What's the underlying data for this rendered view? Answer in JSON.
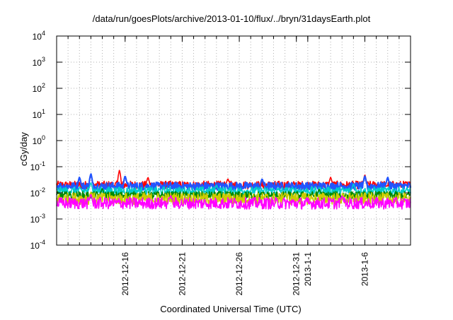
{
  "chart_data": {
    "type": "line",
    "title": "/data/run/goesPlots/archive/2013-01-10/flux/../bryn/31daysEarth.plot",
    "xlabel": "Coordinated Universal Time (UTC)",
    "ylabel": "cGy/day",
    "yscale": "log",
    "ylim": [
      0.0001,
      10000
    ],
    "xlim": [
      "2012-12-10",
      "2013-01-10"
    ],
    "grid": true,
    "legend": "none",
    "y_ticks": [
      {
        "base": "10",
        "exp": "-4",
        "value": 0.0001
      },
      {
        "base": "10",
        "exp": "-3",
        "value": 0.001
      },
      {
        "base": "10",
        "exp": "-2",
        "value": 0.01
      },
      {
        "base": "10",
        "exp": "-1",
        "value": 0.1
      },
      {
        "base": "10",
        "exp": "0",
        "value": 1
      },
      {
        "base": "10",
        "exp": "1",
        "value": 10
      },
      {
        "base": "10",
        "exp": "2",
        "value": 100
      },
      {
        "base": "10",
        "exp": "3",
        "value": 1000
      },
      {
        "base": "10",
        "exp": "4",
        "value": 10000
      }
    ],
    "x_ticks": [
      {
        "label": "2012-12-16",
        "date": "2012-12-16"
      },
      {
        "label": "2012-12-21",
        "date": "2012-12-21"
      },
      {
        "label": "2012-12-26",
        "date": "2012-12-26"
      },
      {
        "label": "2012-12-31",
        "date": "2012-12-31"
      },
      {
        "label": "2013-1-1",
        "date": "2013-01-01"
      },
      {
        "label": "2013-1-6",
        "date": "2013-01-06"
      }
    ],
    "series": [
      {
        "color": "#ff0000",
        "baseline": 0.02,
        "peaks": [
          [
            "2012-12-13",
            0.05
          ],
          [
            "2012-12-15.5",
            0.075
          ],
          [
            "2012-12-18",
            0.04
          ],
          [
            "2012-12-25",
            0.035
          ],
          [
            "2013-01-03",
            0.04
          ],
          [
            "2013-01-06",
            0.05
          ]
        ]
      },
      {
        "color": "#2255ff",
        "baseline": 0.018,
        "peaks": [
          [
            "2012-12-12",
            0.04
          ],
          [
            "2012-12-13",
            0.055
          ],
          [
            "2012-12-16",
            0.045
          ],
          [
            "2012-12-28",
            0.035
          ],
          [
            "2013-01-06",
            0.045
          ],
          [
            "2013-01-08",
            0.04
          ]
        ]
      },
      {
        "color": "#00cccc",
        "baseline": 0.012,
        "peaks": [
          [
            "2012-12-13",
            0.025
          ],
          [
            "2012-12-24",
            0.02
          ],
          [
            "2013-01-05",
            0.022
          ]
        ]
      },
      {
        "color": "#008800",
        "baseline": 0.008,
        "peaks": [
          [
            "2012-12-14",
            0.015
          ],
          [
            "2013-01-02",
            0.014
          ]
        ]
      },
      {
        "color": "#cccc00",
        "baseline": 0.006,
        "peaks": [
          [
            "2012-12-13",
            0.011
          ],
          [
            "2012-12-30",
            0.01
          ]
        ]
      },
      {
        "color": "#ff00ff",
        "baseline": 0.004,
        "peaks": [
          [
            "2012-12-13",
            0.009
          ],
          [
            "2012-12-20",
            0.008
          ],
          [
            "2013-01-04",
            0.008
          ]
        ]
      }
    ]
  }
}
